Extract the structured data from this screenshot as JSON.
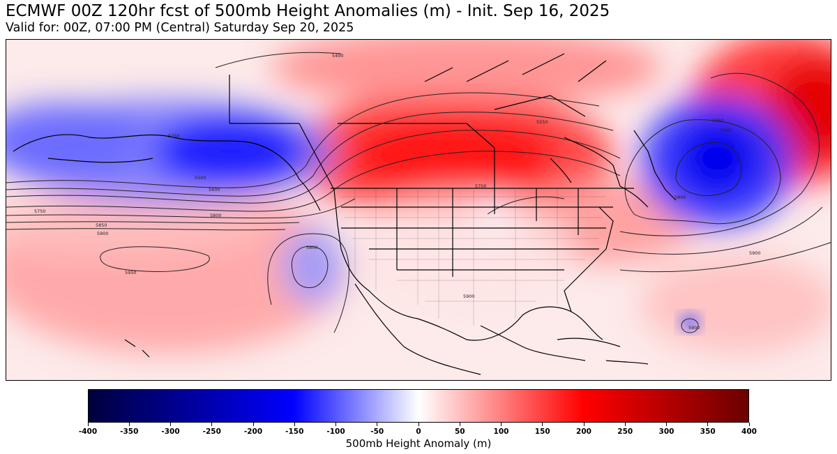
{
  "title": "ECMWF 00Z 120hr fcst of 500mb Height Anomalies (m) - Init. Sep 16, 2025",
  "subtitle": "Valid for: 00Z, 07:00 PM (Central) Saturday Sep 20, 2025",
  "colorbar": {
    "label": "500mb Height Anomaly (m)",
    "min": -400,
    "max": 400,
    "ticks": [
      "-400",
      "-350",
      "-300",
      "-250",
      "-200",
      "-150",
      "-100",
      "-50",
      "0",
      "50",
      "100",
      "150",
      "200",
      "250",
      "300",
      "350",
      "400"
    ],
    "colors": {
      "min": "#00003c",
      "neg_mid": "#0000ff",
      "zero": "#ffffff",
      "pos_mid": "#ff0000",
      "max": "#6b0000"
    }
  },
  "map": {
    "contour_labels": [
      "5400",
      "5350",
      "5500",
      "5600",
      "5750",
      "5800",
      "5850",
      "5900",
      "5950",
      "5550",
      "5700",
      "5350",
      "5300",
      "5800",
      "5900",
      "5900",
      "5800",
      "5900"
    ],
    "anomaly_centers": [
      {
        "name": "alaska-low",
        "value": -200
      },
      {
        "name": "labrador-low",
        "value": -230
      },
      {
        "name": "canada-high",
        "value": 200
      },
      {
        "name": "north-atlantic-high",
        "value": 220
      },
      {
        "name": "pacific-high",
        "value": 130
      },
      {
        "name": "california-cutoff-low",
        "value": -120
      },
      {
        "name": "caribbean-low",
        "value": -60
      }
    ]
  }
}
